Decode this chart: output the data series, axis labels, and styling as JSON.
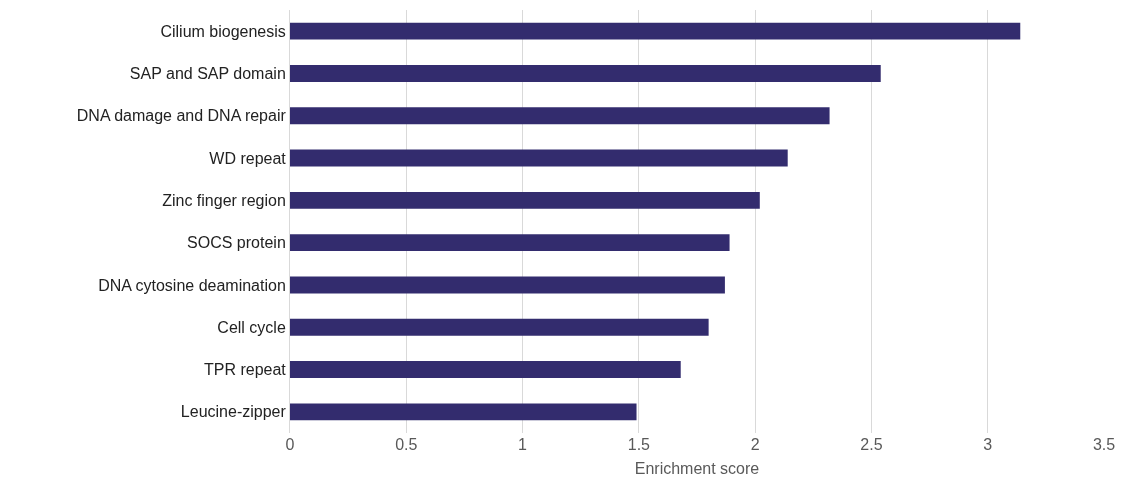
{
  "chart_data": {
    "type": "bar",
    "orientation": "horizontal",
    "xlabel": "Enrichment score",
    "categories": [
      "Cilium biogenesis",
      "SAP and SAP domain",
      "DNA damage and DNA repair",
      "WD repeat",
      "Zinc finger region",
      "SOCS protein",
      "DNA cytosine deamination",
      "Cell cycle",
      "TPR repeat",
      "Leucine-zipper"
    ],
    "values": [
      3.14,
      2.54,
      2.32,
      2.14,
      2.02,
      1.89,
      1.87,
      1.8,
      1.68,
      1.49
    ],
    "color": "#332c6e",
    "xlim": [
      0,
      3.5
    ],
    "xticks": [
      0,
      0.5,
      1,
      1.5,
      2,
      2.5,
      3,
      3.5
    ],
    "grid": "x",
    "legend": false
  }
}
